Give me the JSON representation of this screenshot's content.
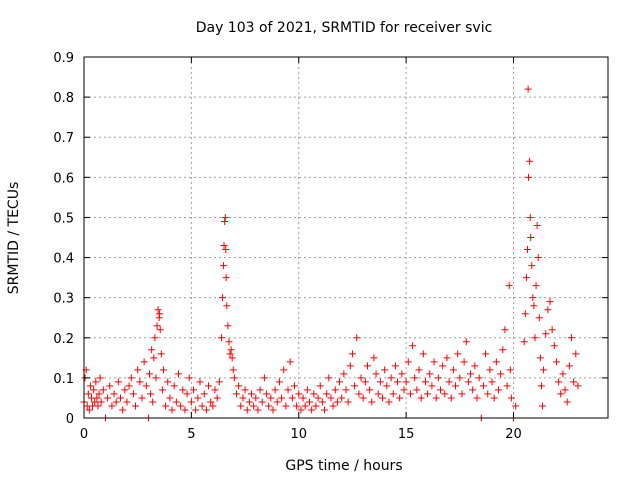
{
  "chart_data": {
    "type": "scatter",
    "title": "Day 103 of 2021, SRMTID for receiver svic",
    "xlabel": "GPS time / hours",
    "ylabel": "SRMTID / TECUs",
    "xlim": [
      0,
      24.4
    ],
    "ylim": [
      0,
      0.9
    ],
    "xticks": [
      0,
      5,
      10,
      15,
      20
    ],
    "xtick_labels": [
      "0",
      "5",
      "10",
      "15",
      "20"
    ],
    "yticks": [
      0,
      0.1,
      0.2,
      0.3,
      0.4,
      0.5,
      0.6,
      0.7,
      0.8,
      0.9
    ],
    "ytick_labels": [
      "0",
      "0.1",
      "0.2",
      "0.3",
      "0.4",
      "0.5",
      "0.6",
      "0.7",
      "0.8",
      "0.9"
    ],
    "grid": true,
    "marker": "+",
    "color": "#ff0000",
    "series": [
      {
        "name": "SRMTID",
        "points": [
          [
            0.0,
            0.04
          ],
          [
            0.05,
            0.1
          ],
          [
            0.1,
            0.12
          ],
          [
            0.15,
            0.03
          ],
          [
            0.2,
            0.06
          ],
          [
            0.25,
            0.02
          ],
          [
            0.3,
            0.08
          ],
          [
            0.35,
            0.05
          ],
          [
            0.4,
            0.03
          ],
          [
            0.45,
            0.07
          ],
          [
            0.5,
            0.04
          ],
          [
            0.55,
            0.09
          ],
          [
            0.6,
            0.05
          ],
          [
            0.65,
            0.03
          ],
          [
            0.7,
            0.06
          ],
          [
            0.75,
            0.1
          ],
          [
            0.8,
            0.04
          ],
          [
            0.9,
            0.07
          ],
          [
            1.0,
            0.0
          ],
          [
            1.1,
            0.05
          ],
          [
            1.2,
            0.08
          ],
          [
            1.3,
            0.03
          ],
          [
            1.4,
            0.06
          ],
          [
            1.5,
            0.04
          ],
          [
            1.6,
            0.09
          ],
          [
            1.7,
            0.05
          ],
          [
            1.8,
            0.02
          ],
          [
            1.9,
            0.07
          ],
          [
            2.0,
            0.04
          ],
          [
            2.1,
            0.08
          ],
          [
            2.2,
            0.1
          ],
          [
            2.3,
            0.06
          ],
          [
            2.4,
            0.03
          ],
          [
            2.5,
            0.12
          ],
          [
            2.6,
            0.09
          ],
          [
            2.7,
            0.05
          ],
          [
            2.8,
            0.14
          ],
          [
            2.9,
            0.08
          ],
          [
            3.0,
            0.0
          ],
          [
            3.05,
            0.11
          ],
          [
            3.1,
            0.06
          ],
          [
            3.15,
            0.17
          ],
          [
            3.2,
            0.04
          ],
          [
            3.25,
            0.15
          ],
          [
            3.3,
            0.2
          ],
          [
            3.35,
            0.1
          ],
          [
            3.4,
            0.23
          ],
          [
            3.45,
            0.27
          ],
          [
            3.5,
            0.25
          ],
          [
            3.52,
            0.26
          ],
          [
            3.55,
            0.22
          ],
          [
            3.6,
            0.16
          ],
          [
            3.65,
            0.07
          ],
          [
            3.7,
            0.12
          ],
          [
            3.8,
            0.03
          ],
          [
            3.9,
            0.09
          ],
          [
            4.0,
            0.05
          ],
          [
            4.1,
            0.02
          ],
          [
            4.2,
            0.08
          ],
          [
            4.3,
            0.04
          ],
          [
            4.4,
            0.11
          ],
          [
            4.5,
            0.03
          ],
          [
            4.6,
            0.07
          ],
          [
            4.7,
            0.02
          ],
          [
            4.8,
            0.06
          ],
          [
            4.9,
            0.1
          ],
          [
            5.0,
            0.04
          ],
          [
            5.1,
            0.07
          ],
          [
            5.2,
            0.02
          ],
          [
            5.3,
            0.05
          ],
          [
            5.4,
            0.09
          ],
          [
            5.5,
            0.03
          ],
          [
            5.6,
            0.06
          ],
          [
            5.7,
            0.02
          ],
          [
            5.8,
            0.08
          ],
          [
            5.9,
            0.04
          ],
          [
            6.0,
            0.03
          ],
          [
            6.1,
            0.07
          ],
          [
            6.2,
            0.05
          ],
          [
            6.3,
            0.09
          ],
          [
            6.4,
            0.2
          ],
          [
            6.45,
            0.3
          ],
          [
            6.5,
            0.38
          ],
          [
            6.52,
            0.43
          ],
          [
            6.55,
            0.49
          ],
          [
            6.58,
            0.5
          ],
          [
            6.6,
            0.42
          ],
          [
            6.62,
            0.35
          ],
          [
            6.65,
            0.28
          ],
          [
            6.7,
            0.23
          ],
          [
            6.75,
            0.19
          ],
          [
            6.8,
            0.16
          ],
          [
            6.85,
            0.17
          ],
          [
            6.9,
            0.15
          ],
          [
            6.95,
            0.12
          ],
          [
            7.0,
            0.1
          ],
          [
            7.1,
            0.06
          ],
          [
            7.2,
            0.08
          ],
          [
            7.3,
            0.03
          ],
          [
            7.4,
            0.05
          ],
          [
            7.5,
            0.07
          ],
          [
            7.6,
            0.02
          ],
          [
            7.7,
            0.04
          ],
          [
            7.8,
            0.06
          ],
          [
            7.9,
            0.03
          ],
          [
            8.0,
            0.05
          ],
          [
            8.1,
            0.02
          ],
          [
            8.2,
            0.07
          ],
          [
            8.3,
            0.04
          ],
          [
            8.4,
            0.1
          ],
          [
            8.5,
            0.06
          ],
          [
            8.6,
            0.03
          ],
          [
            8.7,
            0.05
          ],
          [
            8.8,
            0.02
          ],
          [
            8.9,
            0.07
          ],
          [
            9.0,
            0.04
          ],
          [
            9.1,
            0.09
          ],
          [
            9.2,
            0.05
          ],
          [
            9.3,
            0.12
          ],
          [
            9.4,
            0.03
          ],
          [
            9.5,
            0.07
          ],
          [
            9.6,
            0.14
          ],
          [
            9.7,
            0.05
          ],
          [
            9.8,
            0.08
          ],
          [
            9.9,
            0.03
          ],
          [
            10.0,
            0.06
          ],
          [
            10.1,
            0.02
          ],
          [
            10.2,
            0.05
          ],
          [
            10.3,
            0.03
          ],
          [
            10.4,
            0.07
          ],
          [
            10.5,
            0.04
          ],
          [
            10.6,
            0.02
          ],
          [
            10.7,
            0.06
          ],
          [
            10.8,
            0.03
          ],
          [
            10.9,
            0.05
          ],
          [
            11.0,
            0.08
          ],
          [
            11.1,
            0.04
          ],
          [
            11.2,
            0.02
          ],
          [
            11.3,
            0.06
          ],
          [
            11.4,
            0.1
          ],
          [
            11.5,
            0.05
          ],
          [
            11.6,
            0.03
          ],
          [
            11.7,
            0.07
          ],
          [
            11.8,
            0.04
          ],
          [
            11.9,
            0.09
          ],
          [
            12.0,
            0.05
          ],
          [
            12.1,
            0.11
          ],
          [
            12.2,
            0.07
          ],
          [
            12.3,
            0.04
          ],
          [
            12.4,
            0.13
          ],
          [
            12.5,
            0.16
          ],
          [
            12.6,
            0.08
          ],
          [
            12.7,
            0.2
          ],
          [
            12.8,
            0.06
          ],
          [
            12.9,
            0.1
          ],
          [
            13.0,
            0.05
          ],
          [
            13.1,
            0.09
          ],
          [
            13.2,
            0.13
          ],
          [
            13.3,
            0.07
          ],
          [
            13.4,
            0.04
          ],
          [
            13.5,
            0.15
          ],
          [
            13.6,
            0.11
          ],
          [
            13.7,
            0.06
          ],
          [
            13.8,
            0.09
          ],
          [
            13.9,
            0.05
          ],
          [
            14.0,
            0.12
          ],
          [
            14.1,
            0.08
          ],
          [
            14.2,
            0.04
          ],
          [
            14.3,
            0.1
          ],
          [
            14.4,
            0.06
          ],
          [
            14.5,
            0.13
          ],
          [
            14.6,
            0.09
          ],
          [
            14.7,
            0.05
          ],
          [
            14.8,
            0.11
          ],
          [
            14.9,
            0.07
          ],
          [
            15.0,
            0.09
          ],
          [
            15.1,
            0.14
          ],
          [
            15.2,
            0.06
          ],
          [
            15.3,
            0.18
          ],
          [
            15.4,
            0.1
          ],
          [
            15.5,
            0.07
          ],
          [
            15.6,
            0.12
          ],
          [
            15.7,
            0.05
          ],
          [
            15.8,
            0.16
          ],
          [
            15.9,
            0.09
          ],
          [
            16.0,
            0.06
          ],
          [
            16.1,
            0.11
          ],
          [
            16.2,
            0.08
          ],
          [
            16.3,
            0.14
          ],
          [
            16.4,
            0.05
          ],
          [
            16.5,
            0.1
          ],
          [
            16.6,
            0.07
          ],
          [
            16.7,
            0.13
          ],
          [
            16.8,
            0.06
          ],
          [
            16.9,
            0.15
          ],
          [
            17.0,
            0.09
          ],
          [
            17.1,
            0.05
          ],
          [
            17.2,
            0.12
          ],
          [
            17.3,
            0.08
          ],
          [
            17.4,
            0.16
          ],
          [
            17.5,
            0.1
          ],
          [
            17.6,
            0.06
          ],
          [
            17.7,
            0.14
          ],
          [
            17.8,
            0.19
          ],
          [
            17.9,
            0.09
          ],
          [
            18.0,
            0.11
          ],
          [
            18.1,
            0.07
          ],
          [
            18.2,
            0.13
          ],
          [
            18.3,
            0.05
          ],
          [
            18.4,
            0.1
          ],
          [
            18.5,
            0.0
          ],
          [
            18.6,
            0.08
          ],
          [
            18.7,
            0.16
          ],
          [
            18.8,
            0.06
          ],
          [
            18.9,
            0.12
          ],
          [
            19.0,
            0.09
          ],
          [
            19.1,
            0.05
          ],
          [
            19.2,
            0.14
          ],
          [
            19.3,
            0.07
          ],
          [
            19.4,
            0.11
          ],
          [
            19.5,
            0.17
          ],
          [
            19.6,
            0.22
          ],
          [
            19.7,
            0.08
          ],
          [
            19.8,
            0.33
          ],
          [
            19.85,
            0.12
          ],
          [
            19.9,
            0.05
          ],
          [
            20.0,
            0.0
          ],
          [
            20.1,
            0.03
          ],
          [
            20.5,
            0.19
          ],
          [
            20.55,
            0.26
          ],
          [
            20.6,
            0.35
          ],
          [
            20.65,
            0.42
          ],
          [
            20.68,
            0.82
          ],
          [
            20.7,
            0.6
          ],
          [
            20.75,
            0.64
          ],
          [
            20.78,
            0.5
          ],
          [
            20.8,
            0.45
          ],
          [
            20.85,
            0.38
          ],
          [
            20.9,
            0.3
          ],
          [
            20.95,
            0.28
          ],
          [
            21.0,
            0.2
          ],
          [
            21.05,
            0.33
          ],
          [
            21.1,
            0.48
          ],
          [
            21.15,
            0.4
          ],
          [
            21.2,
            0.25
          ],
          [
            21.25,
            0.15
          ],
          [
            21.3,
            0.08
          ],
          [
            21.35,
            0.03
          ],
          [
            21.4,
            0.12
          ],
          [
            21.5,
            0.21
          ],
          [
            21.6,
            0.27
          ],
          [
            21.7,
            0.29
          ],
          [
            21.8,
            0.22
          ],
          [
            21.9,
            0.18
          ],
          [
            22.0,
            0.14
          ],
          [
            22.1,
            0.09
          ],
          [
            22.2,
            0.06
          ],
          [
            22.3,
            0.11
          ],
          [
            22.4,
            0.07
          ],
          [
            22.5,
            0.04
          ],
          [
            22.6,
            0.13
          ],
          [
            22.7,
            0.2
          ],
          [
            22.8,
            0.09
          ],
          [
            22.9,
            0.16
          ],
          [
            23.0,
            0.08
          ]
        ]
      }
    ]
  }
}
